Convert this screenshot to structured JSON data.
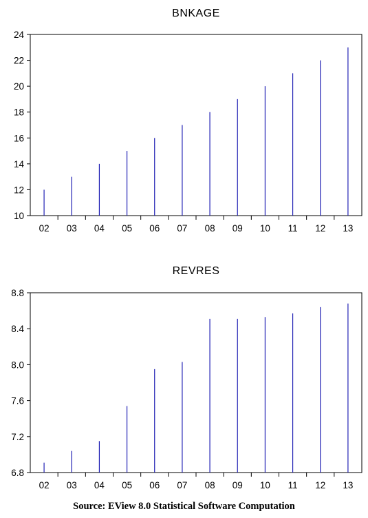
{
  "source_note": "Source: EView 8.0 Statistical Software Computation",
  "chart_data": [
    {
      "type": "bar",
      "title": "BNKAGE",
      "categories": [
        "02",
        "03",
        "04",
        "05",
        "06",
        "07",
        "08",
        "09",
        "10",
        "11",
        "12",
        "13"
      ],
      "values": [
        12,
        13,
        14,
        15,
        16,
        17,
        18,
        19,
        20,
        21,
        22,
        23
      ],
      "ylim": [
        10,
        24
      ],
      "yticks": [
        10,
        12,
        14,
        16,
        18,
        20,
        22,
        24
      ],
      "ytick_labels": [
        "10",
        "12",
        "14",
        "16",
        "18",
        "20",
        "22",
        "24"
      ],
      "series_color": "#1f1fb4",
      "grid": false
    },
    {
      "type": "bar",
      "title": "REVRES",
      "categories": [
        "02",
        "03",
        "04",
        "05",
        "06",
        "07",
        "08",
        "09",
        "10",
        "11",
        "12",
        "13"
      ],
      "values": [
        6.91,
        7.04,
        7.15,
        7.54,
        7.95,
        8.03,
        8.51,
        8.51,
        8.53,
        8.57,
        8.64,
        8.68
      ],
      "ylim": [
        6.8,
        8.8
      ],
      "yticks": [
        6.8,
        7.2,
        7.6,
        8.0,
        8.4,
        8.8
      ],
      "ytick_labels": [
        "6.8",
        "7.2",
        "7.6",
        "8.0",
        "8.4",
        "8.8"
      ],
      "series_color": "#1f1fb4",
      "grid": false
    }
  ]
}
